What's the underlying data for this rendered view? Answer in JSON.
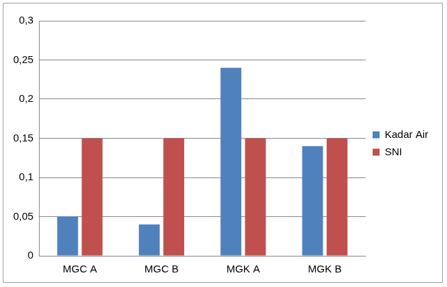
{
  "chart_data": {
    "type": "bar",
    "categories": [
      "MGC A",
      "MGC B",
      "MGK A",
      "MGK B"
    ],
    "series": [
      {
        "name": "Kadar Air",
        "color": "#4f81bd",
        "values": [
          0.05,
          0.04,
          0.24,
          0.14
        ]
      },
      {
        "name": "SNI",
        "color": "#c0504d",
        "values": [
          0.15,
          0.15,
          0.15,
          0.15
        ]
      }
    ],
    "ylim": [
      0,
      0.3
    ],
    "yticks": [
      0,
      {
        "value": 0.05,
        "label": "0,05"
      },
      {
        "value": 0.1,
        "label": "0,1"
      },
      {
        "value": 0.15,
        "label": "0,15"
      },
      {
        "value": 0.2,
        "label": "0,2"
      },
      {
        "value": 0.25,
        "label": "0,25"
      },
      {
        "value": 0.3,
        "label": "0,3"
      }
    ],
    "grid": true,
    "legend": "right"
  }
}
